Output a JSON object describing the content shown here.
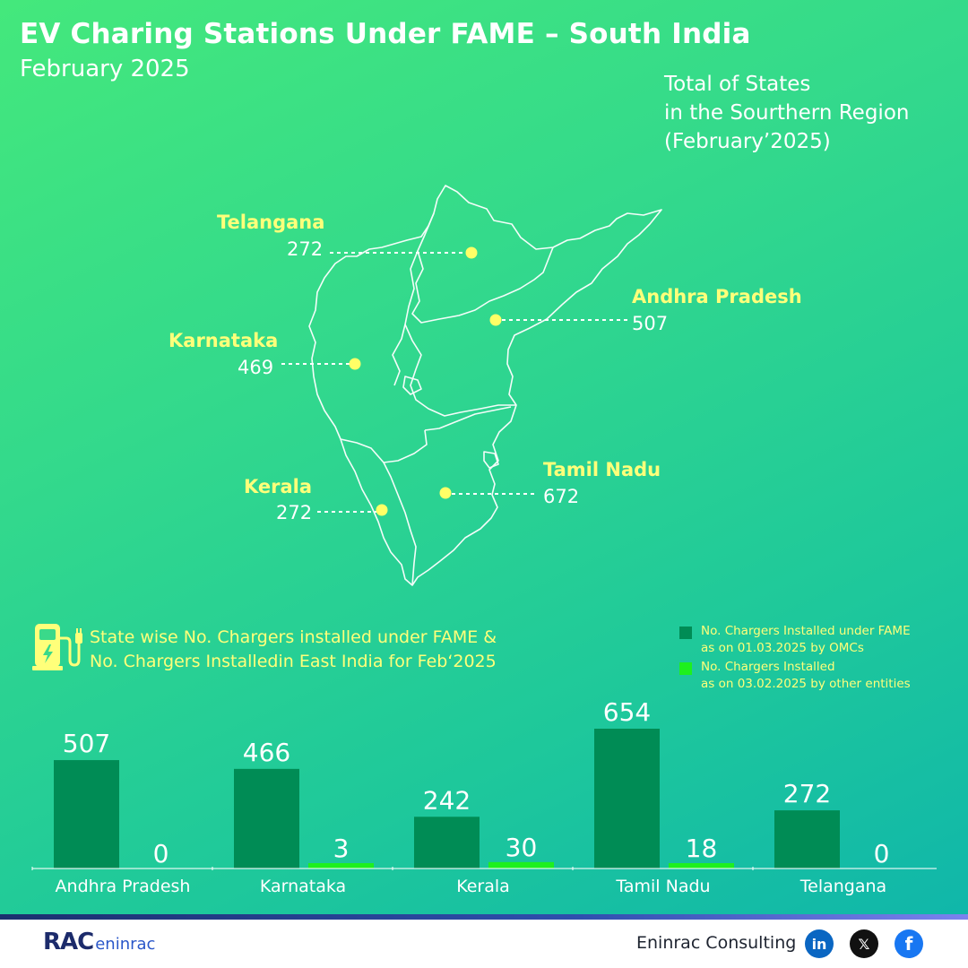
{
  "header": {
    "title": "EV Charing Stations Under FAME – South India",
    "subtitle": "February 2025"
  },
  "region_note": {
    "line1": "Total of States",
    "line2": "in the Sourthern Region",
    "line3": "(February’2025)"
  },
  "map": {
    "states": [
      {
        "name": "Telangana",
        "value": "272"
      },
      {
        "name": "Andhra Pradesh",
        "value": "507"
      },
      {
        "name": "Karnataka",
        "value": "469"
      },
      {
        "name": "Kerala",
        "value": "272"
      },
      {
        "name": "Tamil Nadu",
        "value": "672"
      }
    ],
    "label_color": "#ffff7a",
    "dot_color": "#ffff66"
  },
  "section": {
    "icon": "ev-charger-icon",
    "line1": "State wise No. Chargers installed under FAME &",
    "line2": "No. Chargers Installedin East India for Feb‘2025"
  },
  "legend": [
    {
      "line1": "No. Chargers Installed under FAME",
      "line2": "as on 01.03.2025 by OMCs",
      "color": "#008c55"
    },
    {
      "line1": "No. Chargers Installed",
      "line2": "as on 03.02.2025 by other entities",
      "color": "#1ef01e"
    }
  ],
  "chart_data": {
    "type": "bar",
    "categories": [
      "Andhra Pradesh",
      "Karnataka",
      "Kerala",
      "Tamil Nadu",
      "Telangana"
    ],
    "series": [
      {
        "name": "No. Chargers Installed under FAME as on 01.03.2025 by OMCs",
        "values": [
          507,
          466,
          242,
          654,
          272
        ],
        "color": "#008c55"
      },
      {
        "name": "No. Chargers Installed as on 03.02.2025 by other entities",
        "values": [
          0,
          3,
          30,
          18,
          0
        ],
        "color": "#1ef01e"
      }
    ],
    "title": "",
    "xlabel": "",
    "ylabel": "",
    "ylim": [
      0,
      654
    ],
    "grid": false,
    "legend_position": "top-right"
  },
  "footer": {
    "logo_text": "RAC",
    "logo_sub": "eninrac",
    "company": "Eninrac Consulting",
    "social": [
      {
        "icon": "linkedin-icon",
        "glyph": "in",
        "color": "#0a66c2"
      },
      {
        "icon": "x-icon",
        "glyph": "𝕏",
        "color": "#111111"
      },
      {
        "icon": "facebook-icon",
        "glyph": "f",
        "color": "#1877f2"
      }
    ]
  }
}
